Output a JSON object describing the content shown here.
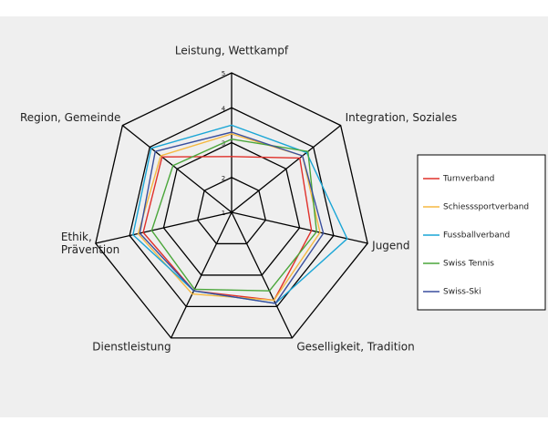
{
  "chart_data": {
    "type": "radar",
    "categories": [
      "Leistung, Wettkampf",
      "Integration, Soziales",
      "Jugend",
      "Geselligkeit, Tradition",
      "Dienstleistung",
      "Ethik,\nPrävention",
      "Region, Gemeinde"
    ],
    "rlim": [
      1,
      5
    ],
    "rticks": [
      1,
      2,
      3,
      4,
      5
    ],
    "series": [
      {
        "name": "Turnverband",
        "color": "#e0302a",
        "values": [
          2.6,
          3.5,
          3.35,
          3.8,
          3.5,
          3.6,
          3.55
        ]
      },
      {
        "name": "Schiesssportverband",
        "color": "#f5b942",
        "values": [
          3.25,
          3.6,
          3.6,
          3.8,
          3.6,
          3.75,
          3.6
        ]
      },
      {
        "name": "Fussballverband",
        "color": "#1aa6d6",
        "values": [
          3.5,
          3.75,
          4.4,
          3.9,
          3.5,
          3.9,
          3.95
        ]
      },
      {
        "name": "Swiss Tennis",
        "color": "#4aa63a",
        "values": [
          3.1,
          3.8,
          3.5,
          3.5,
          3.45,
          3.35,
          3.15
        ]
      },
      {
        "name": "Swiss-Ski",
        "color": "#3a4f9e",
        "values": [
          3.3,
          3.6,
          3.7,
          3.9,
          3.5,
          3.7,
          3.8
        ]
      }
    ]
  }
}
